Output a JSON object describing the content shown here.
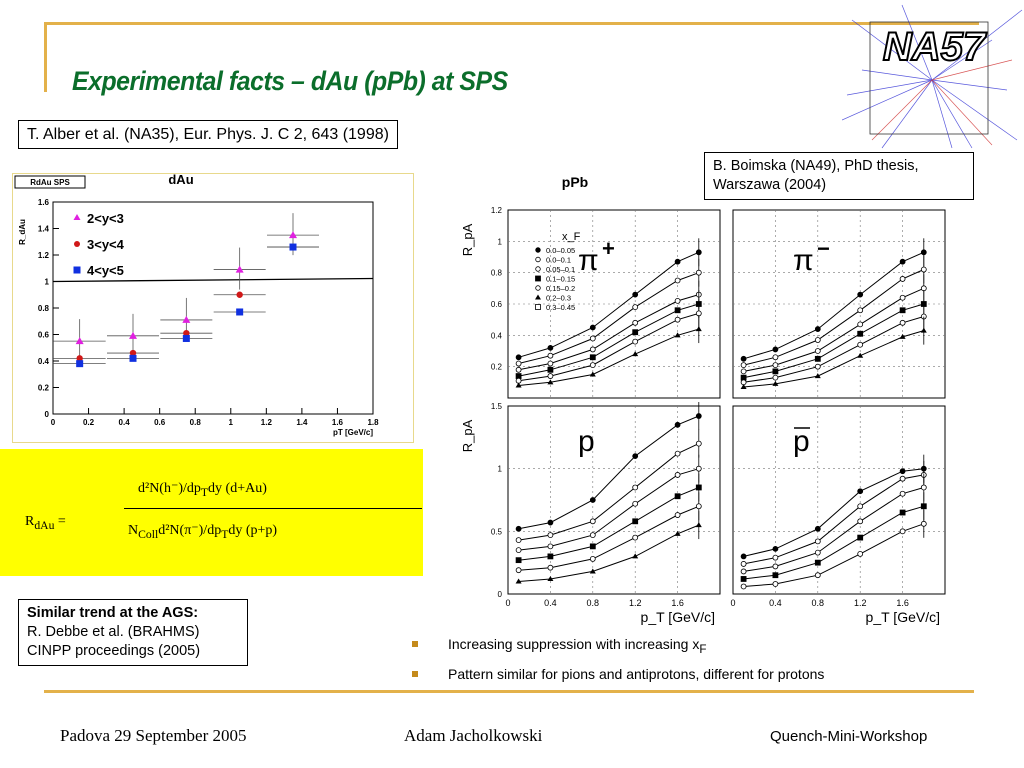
{
  "slide": {
    "title": "Experimental facts – dAu (pPb) at SPS",
    "logo_text": "NA57",
    "ref1": "T. Alber et al. (NA35), Eur. Phys. J. C 2, 643 (1998)",
    "ref2": "B. Boimska (NA49), PhD thesis, Warszawa  (2004)",
    "ref3_heading": "Similar trend at the AGS:",
    "ref3_line1": "R. Debbe et al. (BRAHMS)",
    "ref3_line2": "CINPP proceedings  (2005)",
    "formula": {
      "lhs": "R",
      "lhs_sub": "dAu",
      "lhs_eq": " =",
      "num": "d²N(h⁻)/dp",
      "num_sub": "T",
      "num_tail": "dy (d+Au)",
      "den_pre": "N",
      "den_sub": "Coll",
      "den_mid": "d²N(π⁻)/dp",
      "den_sub2": "T",
      "den_tail": "dy (p+p)"
    },
    "bullets": [
      "Increasing suppression with increasing x",
      "Pattern similar for pions and antiprotons, different for protons"
    ],
    "bullet1_sub": "F",
    "footer_left": "Padova 29 September 2005",
    "footer_mid": "Adam Jacholkowski",
    "footer_right": "Quench-Mini-Workshop",
    "colors": {
      "title": "#0b6e2b",
      "frame": "#e3b14a",
      "highlight": "#ffff00"
    }
  },
  "chart_data": [
    {
      "type": "scatter",
      "title": "dAu",
      "box_label": "RdAu SPS",
      "xlabel": "pT [GeV/c]",
      "ylabel": "R_dAu",
      "xlim": [
        0,
        1.8
      ],
      "ylim": [
        0,
        1.6
      ],
      "xticks": [
        "0",
        "0.2",
        "0.4",
        "0.6",
        "0.8",
        "1",
        "1.2",
        "1.4",
        "1.6",
        "1.8"
      ],
      "yticks": [
        "0",
        "0.2",
        "0.4",
        "0.6",
        "0.8",
        "1",
        "1.2",
        "1.4",
        "1.6"
      ],
      "reference_line": 1.0,
      "series": [
        {
          "name": "2<y<3",
          "color": "#e020e0",
          "marker": "triangle",
          "x": [
            0.15,
            0.45,
            0.75,
            1.05,
            1.35
          ],
          "y": [
            0.55,
            0.59,
            0.71,
            1.09,
            1.35
          ]
        },
        {
          "name": "3<y<4",
          "color": "#d01818",
          "marker": "circle",
          "x": [
            0.15,
            0.45,
            0.75,
            1.05,
            1.35
          ],
          "y": [
            0.42,
            0.46,
            0.61,
            0.9,
            1.26
          ]
        },
        {
          "name": "4<y<5",
          "color": "#1030e0",
          "marker": "square",
          "x": [
            0.15,
            0.45,
            0.75,
            1.05,
            1.35
          ],
          "y": [
            0.38,
            0.42,
            0.57,
            0.77,
            1.26
          ]
        }
      ]
    },
    {
      "type": "line",
      "title": "pPb",
      "xlabel": "p_T [GeV/c]",
      "ylabel": "R_pA",
      "xlim": [
        0,
        2
      ],
      "xticks": [
        "0",
        "0.4",
        "0.8",
        "1.2",
        "1.6"
      ],
      "top_yticks": [
        "1.2",
        "1",
        "0.8",
        "0.6",
        "0.4",
        "0.2"
      ],
      "bottom_yticks": [
        "1.5",
        "1",
        "0.5",
        "0"
      ],
      "legend_title": "x_F",
      "legend": [
        "0.0–0.05",
        "0.0–0.1",
        "0.05–0.1",
        "0.1–0.15",
        "0.15–0.2",
        "0.2–0.3",
        "0.3–0.45"
      ],
      "panels": [
        {
          "label": "π+",
          "label_base": "π",
          "label_sup": "+",
          "curves": [
            {
              "x": [
                0.1,
                0.4,
                0.8,
                1.2,
                1.6,
                1.8
              ],
              "y": [
                0.26,
                0.32,
                0.45,
                0.66,
                0.87,
                0.93
              ]
            },
            {
              "x": [
                0.1,
                0.4,
                0.8,
                1.2,
                1.6,
                1.8
              ],
              "y": [
                0.22,
                0.27,
                0.38,
                0.58,
                0.75,
                0.8
              ]
            },
            {
              "x": [
                0.1,
                0.4,
                0.8,
                1.2,
                1.6,
                1.8
              ],
              "y": [
                0.18,
                0.22,
                0.31,
                0.48,
                0.62,
                0.66
              ]
            },
            {
              "x": [
                0.1,
                0.4,
                0.8,
                1.2,
                1.6,
                1.8
              ],
              "y": [
                0.14,
                0.18,
                0.26,
                0.42,
                0.56,
                0.6
              ]
            },
            {
              "x": [
                0.1,
                0.4,
                0.8,
                1.2,
                1.6,
                1.8
              ],
              "y": [
                0.11,
                0.14,
                0.21,
                0.36,
                0.5,
                0.54
              ]
            },
            {
              "x": [
                0.1,
                0.4,
                0.8,
                1.2,
                1.6,
                1.8
              ],
              "y": [
                0.08,
                0.1,
                0.15,
                0.28,
                0.4,
                0.44
              ]
            }
          ]
        },
        {
          "label": "π−",
          "label_base": "π",
          "label_sup": "−",
          "curves": [
            {
              "x": [
                0.1,
                0.4,
                0.8,
                1.2,
                1.6,
                1.8
              ],
              "y": [
                0.25,
                0.31,
                0.44,
                0.66,
                0.87,
                0.93
              ]
            },
            {
              "x": [
                0.1,
                0.4,
                0.8,
                1.2,
                1.6,
                1.8
              ],
              "y": [
                0.21,
                0.26,
                0.37,
                0.56,
                0.76,
                0.82
              ]
            },
            {
              "x": [
                0.1,
                0.4,
                0.8,
                1.2,
                1.6,
                1.8
              ],
              "y": [
                0.17,
                0.21,
                0.3,
                0.47,
                0.64,
                0.7
              ]
            },
            {
              "x": [
                0.1,
                0.4,
                0.8,
                1.2,
                1.6,
                1.8
              ],
              "y": [
                0.13,
                0.17,
                0.25,
                0.41,
                0.56,
                0.6
              ]
            },
            {
              "x": [
                0.1,
                0.4,
                0.8,
                1.2,
                1.6,
                1.8
              ],
              "y": [
                0.1,
                0.13,
                0.2,
                0.34,
                0.48,
                0.52
              ]
            },
            {
              "x": [
                0.1,
                0.4,
                0.8,
                1.2,
                1.6,
                1.8
              ],
              "y": [
                0.07,
                0.09,
                0.14,
                0.27,
                0.39,
                0.43
              ]
            }
          ]
        },
        {
          "label": "p",
          "label_base": "p",
          "label_sup": "",
          "curves": [
            {
              "x": [
                0.1,
                0.4,
                0.8,
                1.2,
                1.6,
                1.8
              ],
              "y": [
                0.52,
                0.57,
                0.75,
                1.1,
                1.35,
                1.42
              ]
            },
            {
              "x": [
                0.1,
                0.4,
                0.8,
                1.2,
                1.6,
                1.8
              ],
              "y": [
                0.43,
                0.47,
                0.58,
                0.85,
                1.12,
                1.2
              ]
            },
            {
              "x": [
                0.1,
                0.4,
                0.8,
                1.2,
                1.6,
                1.8
              ],
              "y": [
                0.35,
                0.38,
                0.47,
                0.72,
                0.95,
                1.0
              ]
            },
            {
              "x": [
                0.1,
                0.4,
                0.8,
                1.2,
                1.6,
                1.8
              ],
              "y": [
                0.27,
                0.3,
                0.38,
                0.58,
                0.78,
                0.85
              ]
            },
            {
              "x": [
                0.1,
                0.4,
                0.8,
                1.2,
                1.6,
                1.8
              ],
              "y": [
                0.19,
                0.21,
                0.28,
                0.45,
                0.63,
                0.7
              ]
            },
            {
              "x": [
                0.1,
                0.4,
                0.8,
                1.2,
                1.6,
                1.8
              ],
              "y": [
                0.1,
                0.12,
                0.18,
                0.3,
                0.48,
                0.55
              ]
            }
          ]
        },
        {
          "label": "p̄",
          "label_base": "p",
          "label_sup": "",
          "curves": [
            {
              "x": [
                0.1,
                0.4,
                0.8,
                1.2,
                1.6,
                1.8
              ],
              "y": [
                0.3,
                0.36,
                0.52,
                0.82,
                0.98,
                1.0
              ]
            },
            {
              "x": [
                0.1,
                0.4,
                0.8,
                1.2,
                1.6,
                1.8
              ],
              "y": [
                0.24,
                0.29,
                0.42,
                0.7,
                0.92,
                0.95
              ]
            },
            {
              "x": [
                0.1,
                0.4,
                0.8,
                1.2,
                1.6,
                1.8
              ],
              "y": [
                0.18,
                0.22,
                0.33,
                0.58,
                0.8,
                0.85
              ]
            },
            {
              "x": [
                0.1,
                0.4,
                0.8,
                1.2,
                1.6,
                1.8
              ],
              "y": [
                0.12,
                0.15,
                0.25,
                0.45,
                0.65,
                0.7
              ]
            },
            {
              "x": [
                0.1,
                0.4,
                0.8,
                1.2,
                1.6,
                1.8
              ],
              "y": [
                0.06,
                0.08,
                0.15,
                0.32,
                0.5,
                0.56
              ]
            }
          ]
        }
      ]
    }
  ]
}
